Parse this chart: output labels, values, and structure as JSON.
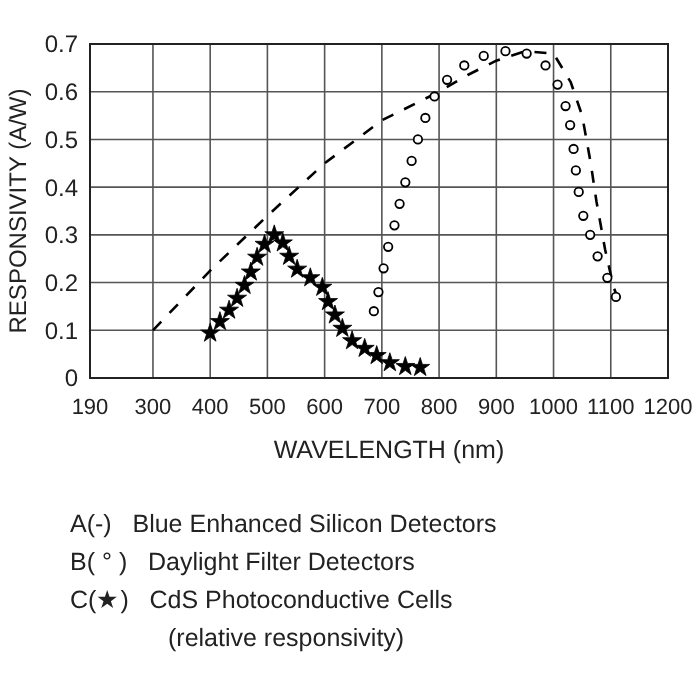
{
  "chart_data": {
    "type": "line",
    "xlabel": "WAVELENGTH (nm)",
    "ylabel": "RESPONSIVITY (A/W)",
    "xlim": [
      190,
      1200
    ],
    "xticks": [
      190,
      300,
      400,
      500,
      600,
      700,
      800,
      900,
      1000,
      1100,
      1200
    ],
    "ylim": [
      0,
      0.7
    ],
    "yticks": [
      0,
      0.1,
      0.2,
      0.3,
      0.4,
      0.5,
      0.6,
      0.7
    ],
    "grid": true,
    "series": [
      {
        "color": "#000000",
        "line_style": "dashed",
        "marker": "none",
        "x": [
          300,
          400,
          500,
          600,
          700,
          800,
          850,
          900,
          950,
          1000,
          1030,
          1050,
          1065,
          1075,
          1090,
          1105,
          1115
        ],
        "values": [
          0.1,
          0.225,
          0.34,
          0.45,
          0.54,
          0.6,
          0.635,
          0.665,
          0.685,
          0.68,
          0.62,
          0.55,
          0.45,
          0.37,
          0.27,
          0.19,
          0.16
        ]
      },
      {
        "type": "scatter",
        "color": "#000000",
        "marker": "circle",
        "x": [
          686,
          694,
          703,
          711,
          722,
          731,
          741,
          752,
          763,
          776,
          792,
          814,
          844,
          878,
          916,
          953,
          986,
          1007,
          1021,
          1029,
          1035,
          1039,
          1044,
          1052,
          1064,
          1077,
          1094,
          1109
        ],
        "values": [
          0.14,
          0.18,
          0.23,
          0.275,
          0.32,
          0.365,
          0.41,
          0.455,
          0.5,
          0.545,
          0.59,
          0.625,
          0.655,
          0.675,
          0.685,
          0.68,
          0.655,
          0.615,
          0.57,
          0.53,
          0.48,
          0.435,
          0.39,
          0.34,
          0.3,
          0.255,
          0.21,
          0.17
        ]
      },
      {
        "type": "scatter",
        "color": "#000000",
        "marker": "star",
        "x": [
          400,
          417,
          433,
          447,
          460,
          471,
          482,
          495,
          512,
          527,
          538,
          552,
          575,
          596,
          606,
          618,
          631,
          648,
          670,
          691,
          714,
          741,
          767
        ],
        "values": [
          0.094,
          0.118,
          0.142,
          0.167,
          0.194,
          0.222,
          0.253,
          0.28,
          0.3,
          0.283,
          0.255,
          0.228,
          0.21,
          0.19,
          0.16,
          0.132,
          0.104,
          0.078,
          0.062,
          0.047,
          0.032,
          0.024,
          0.022
        ]
      }
    ],
    "annotations": [
      "A(-)   Blue Enhanced Silicon Detectors",
      "B( ° )   Daylight Filter Detectors",
      "C(★)   CdS Photoconductive Cells",
      "(relative responsivity)"
    ]
  }
}
